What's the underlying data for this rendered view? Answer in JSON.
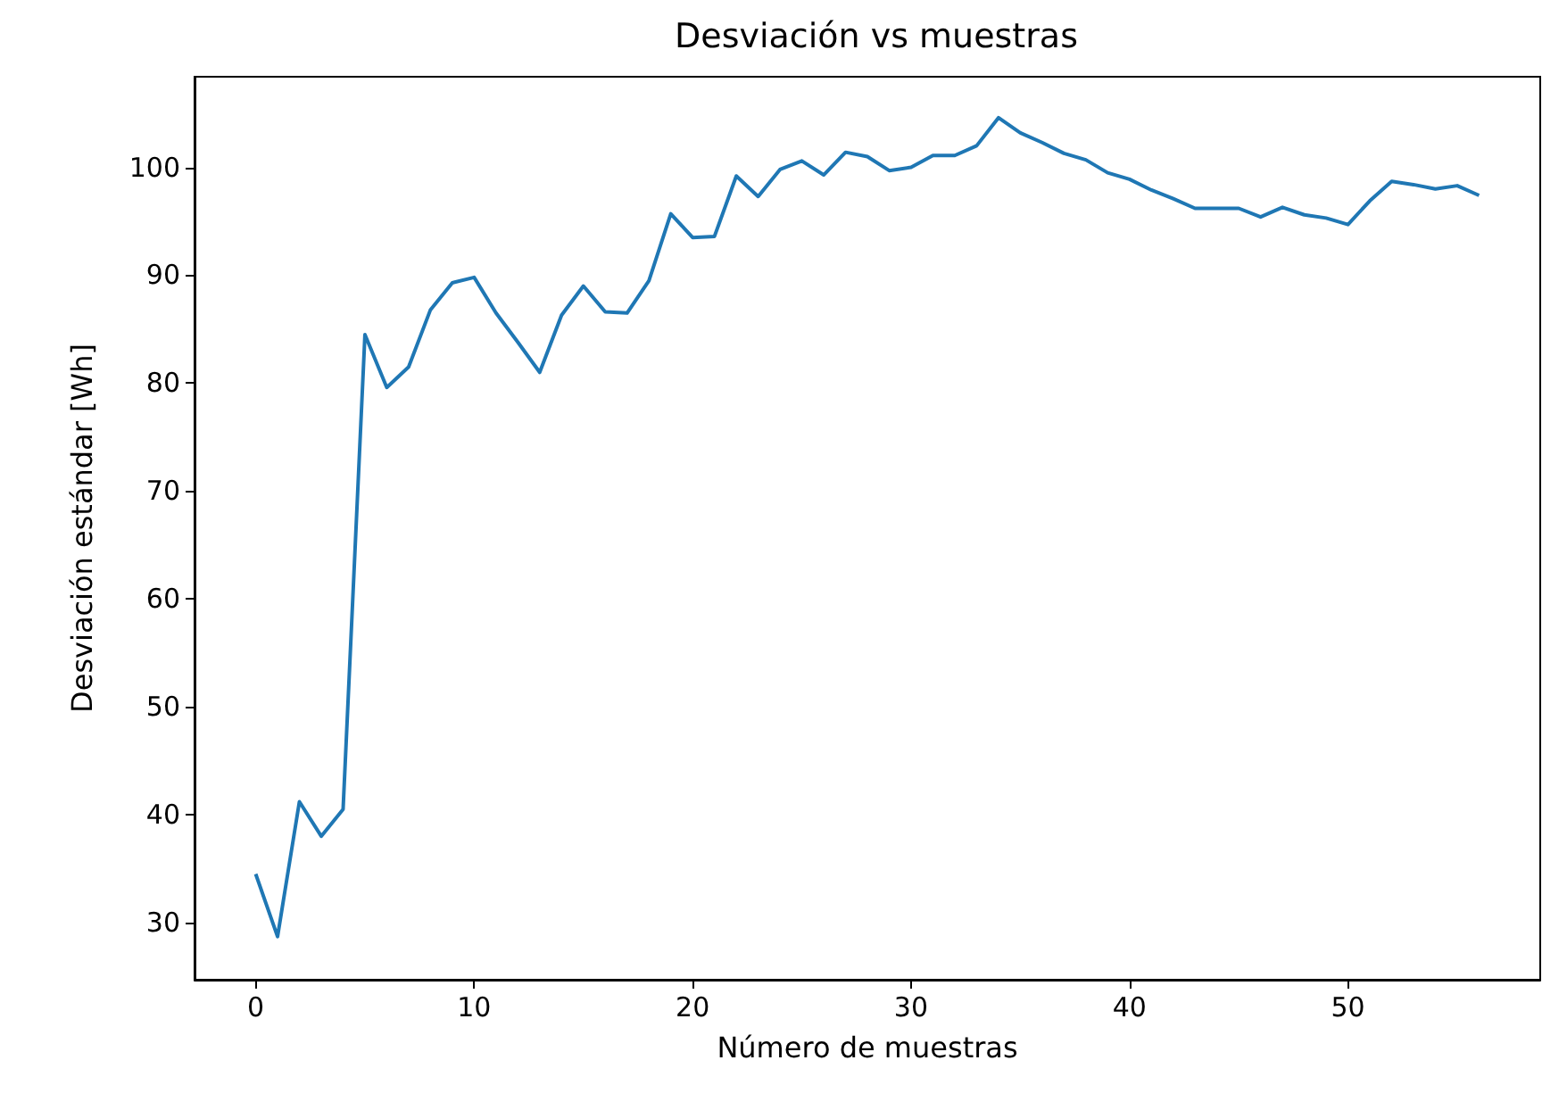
{
  "chart_data": {
    "type": "line",
    "title": "Desviación vs muestras",
    "xlabel": "Número de muestras",
    "ylabel": "Desviación estándar [Wh]",
    "x": [
      0,
      1,
      2,
      3,
      4,
      5,
      6,
      7,
      8,
      9,
      10,
      11,
      12,
      13,
      14,
      15,
      16,
      17,
      18,
      19,
      20,
      21,
      22,
      23,
      24,
      25,
      26,
      27,
      28,
      29,
      30,
      31,
      32,
      33,
      34,
      35,
      36,
      37,
      38,
      39,
      40,
      41,
      42,
      43,
      44,
      45,
      46,
      47,
      48,
      49,
      50,
      51,
      52,
      53,
      54,
      55,
      56
    ],
    "series": [
      {
        "color": "#1f77b4",
        "values": [
          34.5,
          28.7,
          41.2,
          38,
          40.5,
          84.5,
          79.6,
          81.5,
          86.8,
          89.3,
          89.8,
          86.5,
          83.8,
          81,
          86.3,
          89,
          86.6,
          86.5,
          89.5,
          95.7,
          93.5,
          93.6,
          99.2,
          97.3,
          99.8,
          100.6,
          99.3,
          101.4,
          101,
          99.7,
          100,
          101.1,
          101.1,
          102,
          104.6,
          103.2,
          102.3,
          101.3,
          100.7,
          99.5,
          98.9,
          97.9,
          97.1,
          96.2,
          96.2,
          96.2,
          95.4,
          96.3,
          95.6,
          95.3,
          94.7,
          96.9,
          98.7,
          98.4,
          98,
          98.3,
          97.4
        ]
      }
    ],
    "xlim": [
      -2.8,
      58.8
    ],
    "xticks": [
      0,
      10,
      20,
      30,
      40,
      50
    ],
    "ylim": [
      24.7,
      108.4
    ],
    "yticks": [
      30,
      40,
      50,
      60,
      70,
      80,
      90,
      100
    ],
    "grid": false,
    "marker": "none",
    "line_style": "solid"
  }
}
